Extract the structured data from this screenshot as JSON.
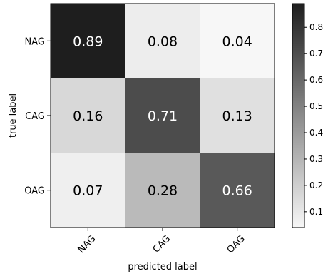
{
  "chart_data": {
    "type": "heatmap",
    "title": "",
    "xlabel": "predicted label",
    "ylabel": "true label",
    "x_categories": [
      "NAG",
      "CAG",
      "OAG"
    ],
    "y_categories": [
      "NAG",
      "CAG",
      "OAG"
    ],
    "values": [
      [
        0.89,
        0.08,
        0.04
      ],
      [
        0.16,
        0.71,
        0.13
      ],
      [
        0.07,
        0.28,
        0.66
      ]
    ],
    "value_labels": [
      [
        "0.89",
        "0.08",
        "0.04"
      ],
      [
        "0.16",
        "0.71",
        "0.13"
      ],
      [
        "0.07",
        "0.28",
        "0.66"
      ]
    ],
    "colormap": "Greys",
    "colorbar": {
      "range": [
        0.04,
        0.89
      ],
      "ticks": [
        0.1,
        0.2,
        0.3,
        0.4,
        0.5,
        0.6,
        0.7,
        0.8
      ],
      "tick_labels": [
        "0.1",
        "0.2",
        "0.3",
        "0.4",
        "0.5",
        "0.6",
        "0.7",
        "0.8"
      ]
    },
    "grid": false,
    "x_tick_rotation_deg": 45
  }
}
